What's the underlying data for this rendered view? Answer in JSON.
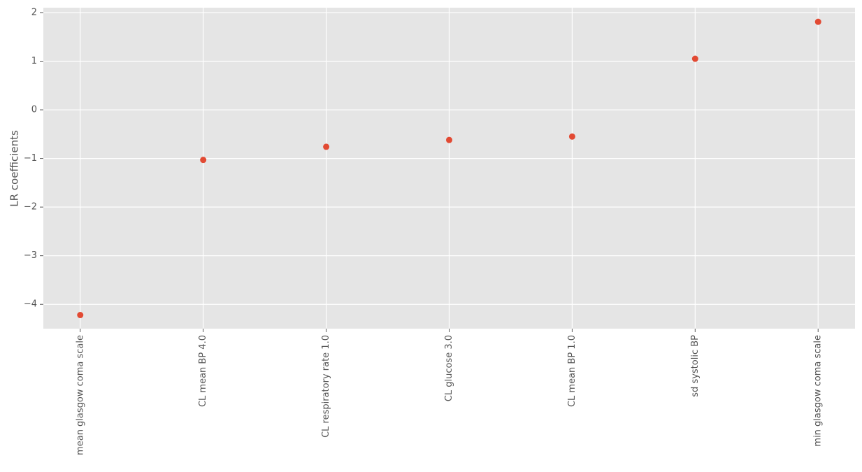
{
  "chart_data": {
    "type": "scatter",
    "ylabel": "LR coefficients",
    "categories": [
      "mean glasgow coma scale",
      "CL mean BP 4.0",
      "CL respiratory rate 1.0",
      "CL glucose 3.0",
      "CL mean BP 1.0",
      "sd systolic BP",
      "min glasgow coma scale"
    ],
    "values": [
      -4.22,
      -1.03,
      -0.76,
      -0.62,
      -0.55,
      1.05,
      1.81
    ],
    "color": "#e24a33",
    "ylim": [
      -4.5,
      2.1
    ],
    "yticks": [
      {
        "value": -4,
        "label": "−4"
      },
      {
        "value": -3,
        "label": "−3"
      },
      {
        "value": -2,
        "label": "−2"
      },
      {
        "value": -1,
        "label": "−1"
      },
      0,
      1,
      2
    ],
    "grid": true
  }
}
